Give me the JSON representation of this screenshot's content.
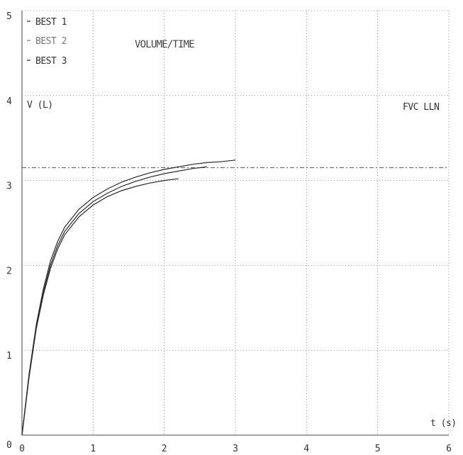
{
  "chart_data": {
    "type": "line",
    "title": "VOLUME/TIME",
    "xlabel": "t (s)",
    "ylabel": "V (L)",
    "xlim": [
      0,
      6
    ],
    "ylim": [
      0,
      5
    ],
    "x_ticks": [
      "0",
      "1",
      "2",
      "3",
      "4",
      "5",
      "6"
    ],
    "y_ticks": [
      "0",
      "1",
      "2",
      "3",
      "4",
      "5"
    ],
    "grid": true,
    "legend_position": "top-left",
    "reference_line": {
      "name": "FVC LLN",
      "label": "FVC LLN",
      "value": 3.15
    },
    "series": [
      {
        "name": "BEST 1",
        "color": "#2a2a2a",
        "x": [
          0,
          0.1,
          0.2,
          0.3,
          0.4,
          0.5,
          0.6,
          0.8,
          1.0,
          1.2,
          1.4,
          1.6,
          1.8,
          2.0,
          2.2,
          2.4,
          2.6,
          2.8,
          3.0
        ],
        "y": [
          0,
          0.72,
          1.3,
          1.72,
          2.05,
          2.28,
          2.45,
          2.66,
          2.8,
          2.9,
          2.98,
          3.04,
          3.09,
          3.13,
          3.16,
          3.19,
          3.21,
          3.22,
          3.24
        ]
      },
      {
        "name": "BEST 2",
        "color": "#777777",
        "x": [
          0,
          0.1,
          0.2,
          0.3,
          0.4,
          0.5,
          0.6,
          0.8,
          1.0,
          1.2,
          1.4,
          1.6,
          1.8,
          2.0,
          2.2,
          2.4,
          2.6
        ],
        "y": [
          0,
          0.7,
          1.27,
          1.68,
          2.0,
          2.23,
          2.4,
          2.61,
          2.75,
          2.85,
          2.93,
          2.99,
          3.04,
          3.08,
          3.11,
          3.14,
          3.16
        ]
      },
      {
        "name": "BEST 3",
        "color": "#2a2a2a",
        "x": [
          0,
          0.1,
          0.2,
          0.3,
          0.4,
          0.5,
          0.6,
          0.8,
          1.0,
          1.2,
          1.4,
          1.6,
          1.8,
          2.0,
          2.2
        ],
        "y": [
          0,
          0.68,
          1.25,
          1.65,
          1.96,
          2.19,
          2.36,
          2.57,
          2.71,
          2.81,
          2.88,
          2.93,
          2.97,
          3.0,
          3.02
        ]
      }
    ]
  }
}
